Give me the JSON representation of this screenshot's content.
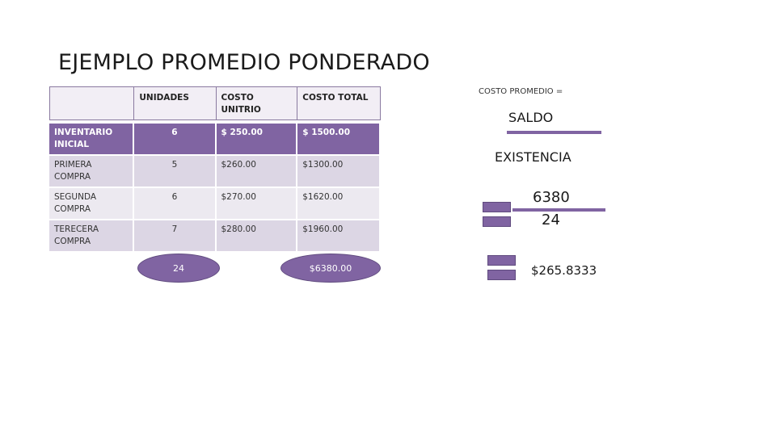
{
  "title": "EJEMPLO PROMEDIO PONDERADO",
  "table": {
    "headers": [
      "",
      "UNIDADES",
      "COSTO UNITRIO",
      "COSTO TOTAL"
    ],
    "rows": [
      {
        "concepto": "INVENTARIO INICIAL",
        "unidades": "6",
        "costo_unitario": "$ 250.00",
        "costo_total": "$ 1500.00"
      },
      {
        "concepto": "PRIMERA COMPRA",
        "unidades": "5",
        "costo_unitario": "$260.00",
        "costo_total": "$1300.00"
      },
      {
        "concepto": "SEGUNDA COMPRA",
        "unidades": "6",
        "costo_unitario": "$270.00",
        "costo_total": "$1620.00"
      },
      {
        "concepto": "TERECERA COMPRA",
        "unidades": "7",
        "costo_unitario": "$280.00",
        "costo_total": "$1960.00"
      }
    ]
  },
  "totals": {
    "units": "24",
    "cost": "$6380.00"
  },
  "formula": {
    "label": "COSTO PROMEDIO =",
    "numerator": "SALDO",
    "denominator": "EXISTENCIA",
    "num_value": "6380",
    "den_value": "24",
    "result": "$265.8333"
  },
  "colors": {
    "accent": "#8064a2",
    "row_dark": "#dcd6e4",
    "row_light": "#ece9f0"
  }
}
